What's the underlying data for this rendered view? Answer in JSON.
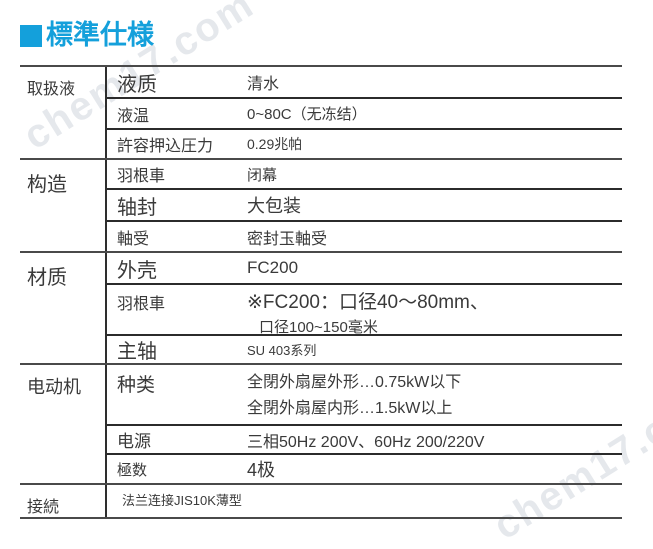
{
  "title": {
    "text": "標準仕様"
  },
  "watermark": {
    "text": "chem17.com"
  },
  "colors": {
    "accent": "#14a0db",
    "section_line": "#4a4a4a",
    "row_line": "#2b2b2b",
    "text": "#3a3a3a",
    "watermark": "#aab4c0"
  },
  "table": {
    "sections": [
      {
        "category": "取扱液",
        "rows": [
          {
            "label": "液质",
            "value": "清水"
          },
          {
            "label": "液温",
            "value": "0~80C（无冻结）"
          },
          {
            "label": "許容押込圧力",
            "value": "0.29兆帕"
          }
        ]
      },
      {
        "category": "构造",
        "rows": [
          {
            "label": "羽根車",
            "value": "闭幕"
          },
          {
            "label": "轴封",
            "value": "大包装"
          },
          {
            "label": "軸受",
            "value": "密封玉軸受"
          }
        ]
      },
      {
        "category": "材质",
        "rows": [
          {
            "label": "外壳",
            "value": "FC200"
          },
          {
            "label": "羽根車",
            "value": "※FC200：口径40～80mm、",
            "value_line2": "口径100~150毫米"
          },
          {
            "label": "主轴",
            "value": "SU 403系列"
          }
        ]
      },
      {
        "category": "电动机",
        "rows": [
          {
            "label": "种类",
            "value": "全閉外扇屋外形…0.75kW以下",
            "value_line2": "全閉外扇屋内形…1.5kW以上"
          },
          {
            "label": "电源",
            "value": "三相50Hz 200V、60Hz 200/220V"
          },
          {
            "label": "極数",
            "value": "4极"
          }
        ]
      },
      {
        "category": "接続",
        "rows": [
          {
            "label": "",
            "value": "法兰连接JIS10K薄型"
          }
        ]
      }
    ]
  }
}
